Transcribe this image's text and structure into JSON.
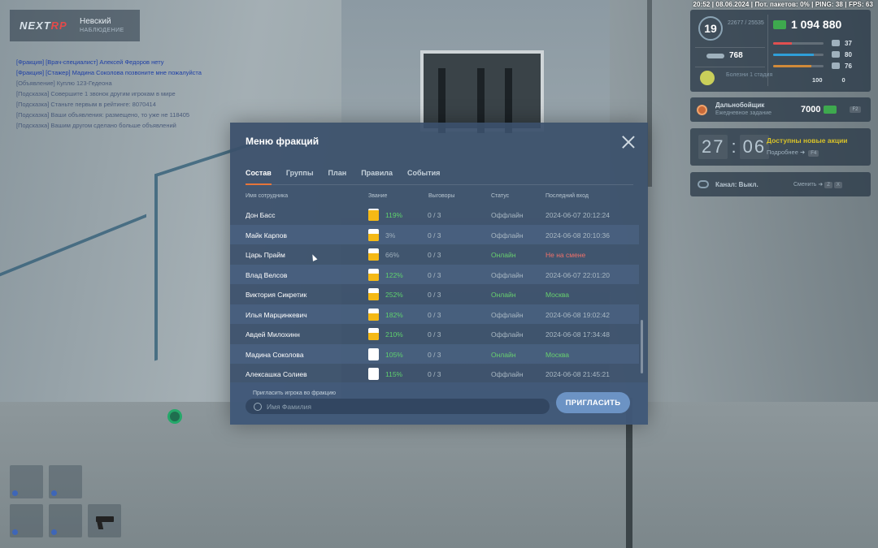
{
  "topbar": {
    "text": "20:52 | 08.06.2024 | Пот. пакетов: 0% | PING: 38 | FPS: 63"
  },
  "logo": {
    "brand_a": "NEXT",
    "brand_b": "RP",
    "server": "Невский",
    "server_sub": "НАБЛЮДЕНИЕ"
  },
  "chat": [
    "[Фракция] [Врач-специалист] Алексей Федоров нету",
    "[Фракция] [Стажер] Мадина Соколова позвоните мне пожалуйста",
    "[Объявление] Куплю 123-Гедеона",
    "[Подсказка] Совершите 1 звонок другим игрокам в мире",
    "[Подсказка] Станьте первым в рейтинге: 8070414",
    "[Подсказка] Ваши объявления: размещено, то уже не 118405",
    "[Подсказка] Вашим другом сделано больше объявлений"
  ],
  "hud": {
    "level": "19",
    "exp": "22677 / 25535",
    "money": "1 094 880",
    "coins": "768",
    "condition": "Болезни\n1 стадия",
    "stats": [
      {
        "icon": "heart-icon",
        "value": "37",
        "percent": 0.37,
        "color": "#e05050"
      },
      {
        "icon": "armor-icon",
        "value": "80",
        "percent": 0.8,
        "color": "#2f9fd8"
      },
      {
        "icon": "food-icon",
        "value": "76",
        "percent": 0.76,
        "color": "#d08a3a"
      }
    ],
    "extra": [
      "100",
      "0"
    ],
    "task_title": "Дальнобойщик",
    "task_sub": "Ежедневное задание",
    "task_reward": "7000",
    "task_key": "F2",
    "timer_h": "27",
    "timer_m": "06",
    "promo": "Доступны новые акции",
    "promo_more": "Подробнее",
    "promo_key": "F4",
    "channel": "Канал: Выкл.",
    "channel_switch": "Сменить",
    "channel_keys": [
      "Z",
      "X"
    ]
  },
  "modal": {
    "title": "Меню фракций",
    "tabs": [
      "Состав",
      "Группы",
      "План",
      "Правила",
      "События"
    ],
    "columns": [
      "Имя сотрудника",
      "Звание",
      "Выговоры",
      "Статус",
      "Последний вход"
    ],
    "rows": [
      {
        "name": "Дон Басс",
        "rank": "119%",
        "rank_level": 0.85,
        "warns": "0 / 3",
        "status": "Оффлайн",
        "online": false,
        "last": "2024-06-07 20:12:24",
        "last_kind": "date"
      },
      {
        "name": "Майк Карпов",
        "rank": "3%",
        "rank_level": 0.6,
        "warns": "0 / 3",
        "status": "Оффлайн",
        "online": false,
        "last": "2024-06-08 20:10:36",
        "last_kind": "date",
        "rank_dim": true
      },
      {
        "name": "Царь Прайм",
        "rank": "66%",
        "rank_level": 0.6,
        "warns": "0 / 3",
        "status": "Онлайн",
        "online": true,
        "last": "Не на смене",
        "last_kind": "red",
        "rank_dim": true
      },
      {
        "name": "Влад Велсов",
        "rank": "122%",
        "rank_level": 0.6,
        "warns": "0 / 3",
        "status": "Оффлайн",
        "online": false,
        "last": "2024-06-07 22:01:20",
        "last_kind": "date"
      },
      {
        "name": "Виктория Сикретик",
        "rank": "252%",
        "rank_level": 0.6,
        "warns": "0 / 3",
        "status": "Онлайн",
        "online": true,
        "last": "Москва",
        "last_kind": "green"
      },
      {
        "name": "Илья Марцинкевич",
        "rank": "182%",
        "rank_level": 0.6,
        "warns": "0 / 3",
        "status": "Оффлайн",
        "online": false,
        "last": "2024-06-08 19:02:42",
        "last_kind": "date"
      },
      {
        "name": "Авдей Милохинн",
        "rank": "210%",
        "rank_level": 0.6,
        "warns": "0 / 3",
        "status": "Оффлайн",
        "online": false,
        "last": "2024-06-08 17:34:48",
        "last_kind": "date"
      },
      {
        "name": "Мадина Соколова",
        "rank": "105%",
        "rank_level": 0.0,
        "warns": "0 / 3",
        "status": "Онлайн",
        "online": true,
        "last": "Москва",
        "last_kind": "green"
      },
      {
        "name": "Алексашка Солиев",
        "rank": "115%",
        "rank_level": 0.0,
        "warns": "0 / 3",
        "status": "Оффлайн",
        "online": false,
        "last": "2024-06-08 21:45:21",
        "last_kind": "date"
      }
    ],
    "invite_label": "Пригласить игрока во фракцию",
    "invite_placeholder": "Имя Фамилия",
    "invite_button": "ПРИГЛАСИТЬ"
  }
}
